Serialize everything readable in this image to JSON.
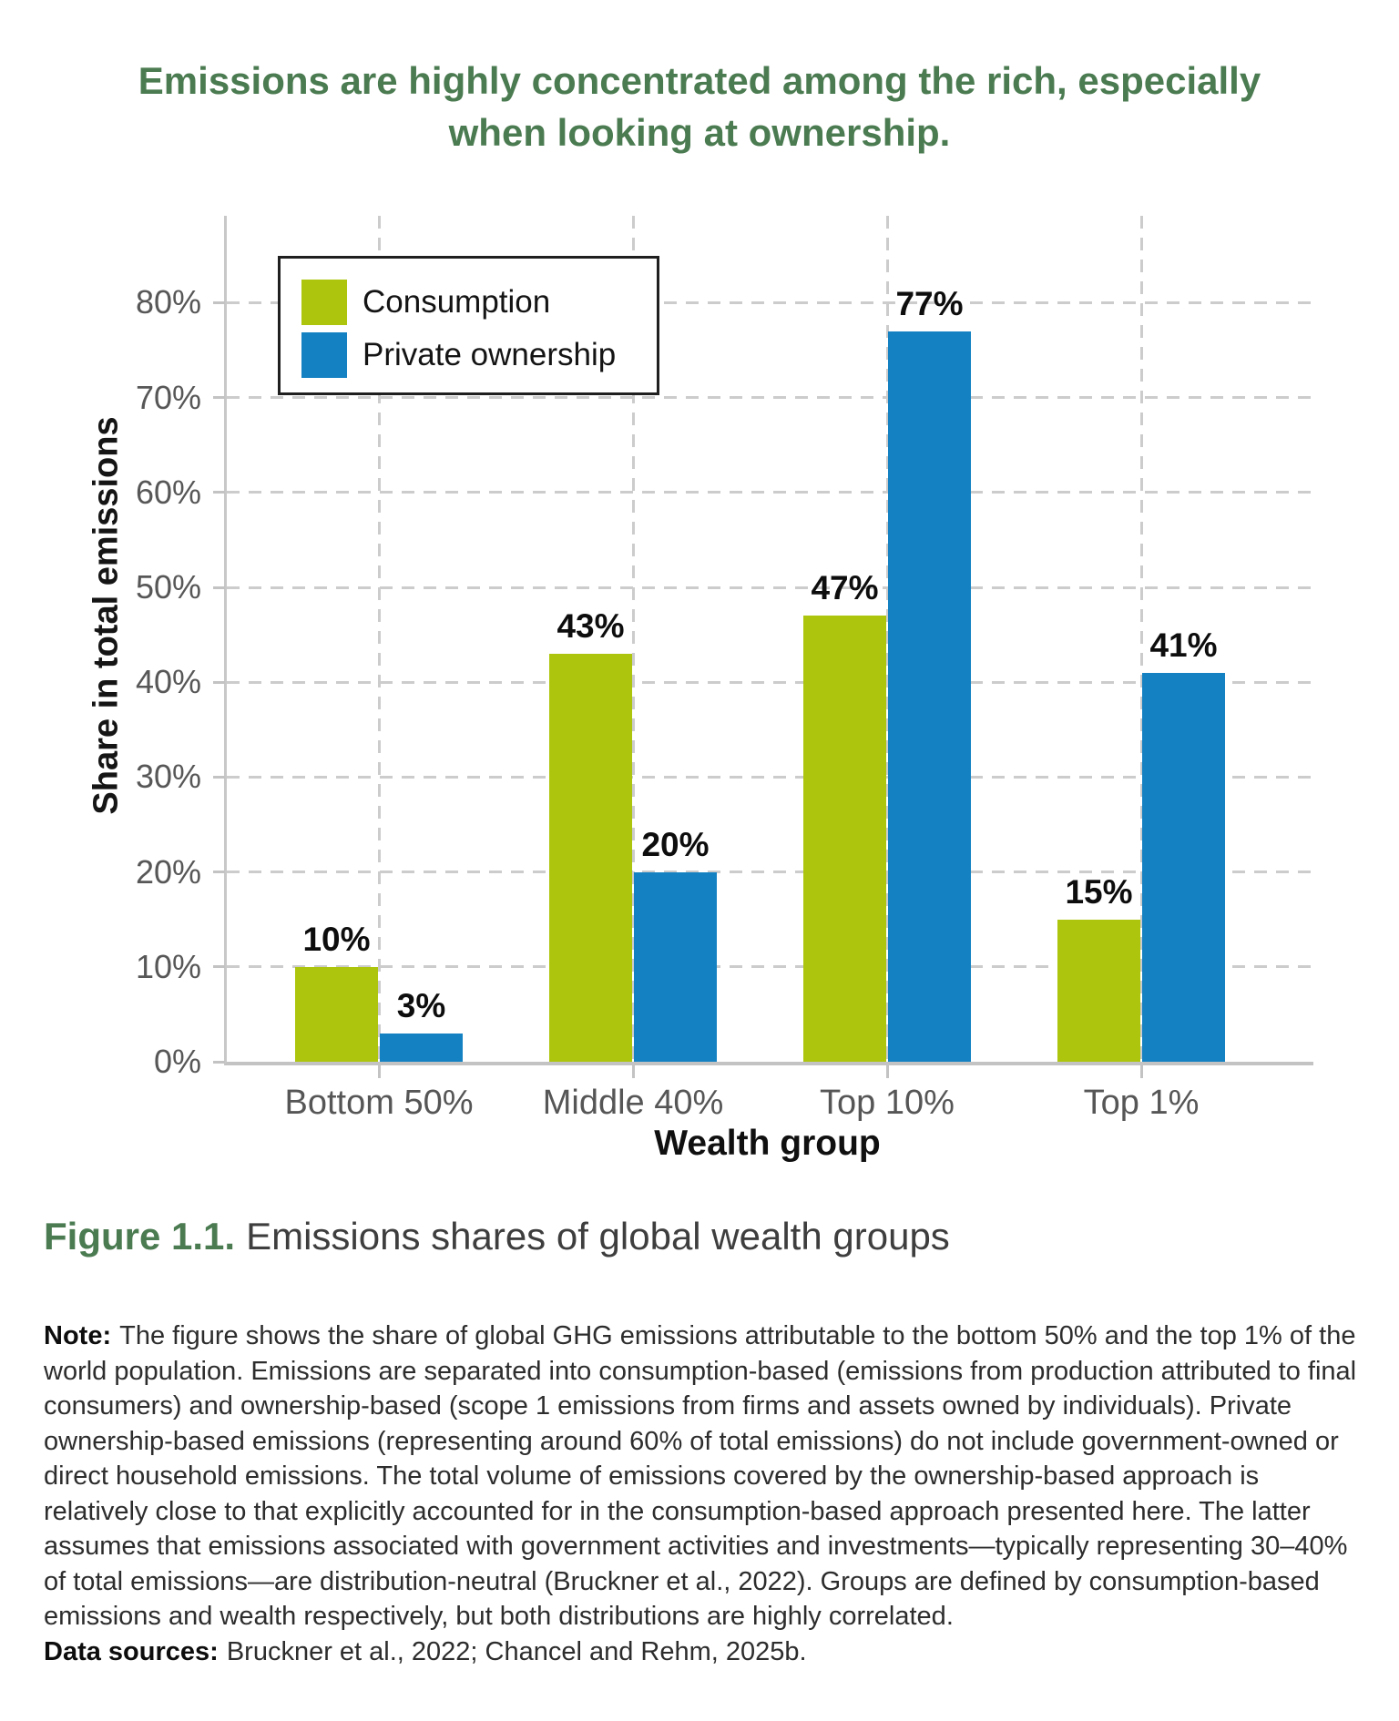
{
  "title": "Emissions are highly concentrated among the rich, especially when looking at ownership.",
  "chart_data": {
    "type": "bar",
    "categories": [
      "Bottom 50%",
      "Middle 40%",
      "Top 10%",
      "Top 1%"
    ],
    "series": [
      {
        "name": "Consumption",
        "color": "#adc60d",
        "values": [
          10,
          43,
          47,
          15
        ]
      },
      {
        "name": "Private ownership",
        "color": "#1481c3",
        "values": [
          3,
          20,
          77,
          41
        ]
      }
    ],
    "xlabel": "Wealth group",
    "ylabel": "Share in total emissions",
    "ylim": [
      0,
      80
    ],
    "ytick_step": 10,
    "ytick_suffix": "%",
    "value_label_suffix": "%",
    "grid": "dashed horizontal gridlines at each 10% and dashed vertical gridlines at category centers",
    "legend_position": "top-left inside plot"
  },
  "caption": {
    "label": "Figure 1.1.",
    "text": "Emissions shares of global wealth groups"
  },
  "note": {
    "label": "Note:",
    "text": "The figure shows the share of global GHG emissions attributable to the bottom 50% and the top 1% of the world population. Emissions are separated into consumption-based (emissions from production attributed to final consumers) and ownership-based (scope 1 emissions from firms and assets owned by individuals). Private ownership-based emissions (representing around 60% of total emissions) do not include government-owned or direct household emissions. The total volume of emissions covered by the ownership-based approach is relatively close to that explicitly accounted for in the consumption-based approach presented here. The latter assumes that emissions associated with government activities and investments—typically representing 30–40% of total emissions—are distribution-neutral (Bruckner et al., 2022). Groups are defined by consumption-based emissions and wealth respectively, but both distributions are highly correlated."
  },
  "sources": {
    "label": "Data sources:",
    "text": "Bruckner et al., 2022; Chancel and Rehm, 2025b."
  },
  "colors": {
    "title_green": "#4b7b51",
    "consumption_green": "#adc60d",
    "ownership_blue": "#1481c3",
    "grid_gray": "#cccccc",
    "axis_gray": "#c3c3c3",
    "tick_text_gray": "#575757",
    "text_black": "#141414"
  }
}
